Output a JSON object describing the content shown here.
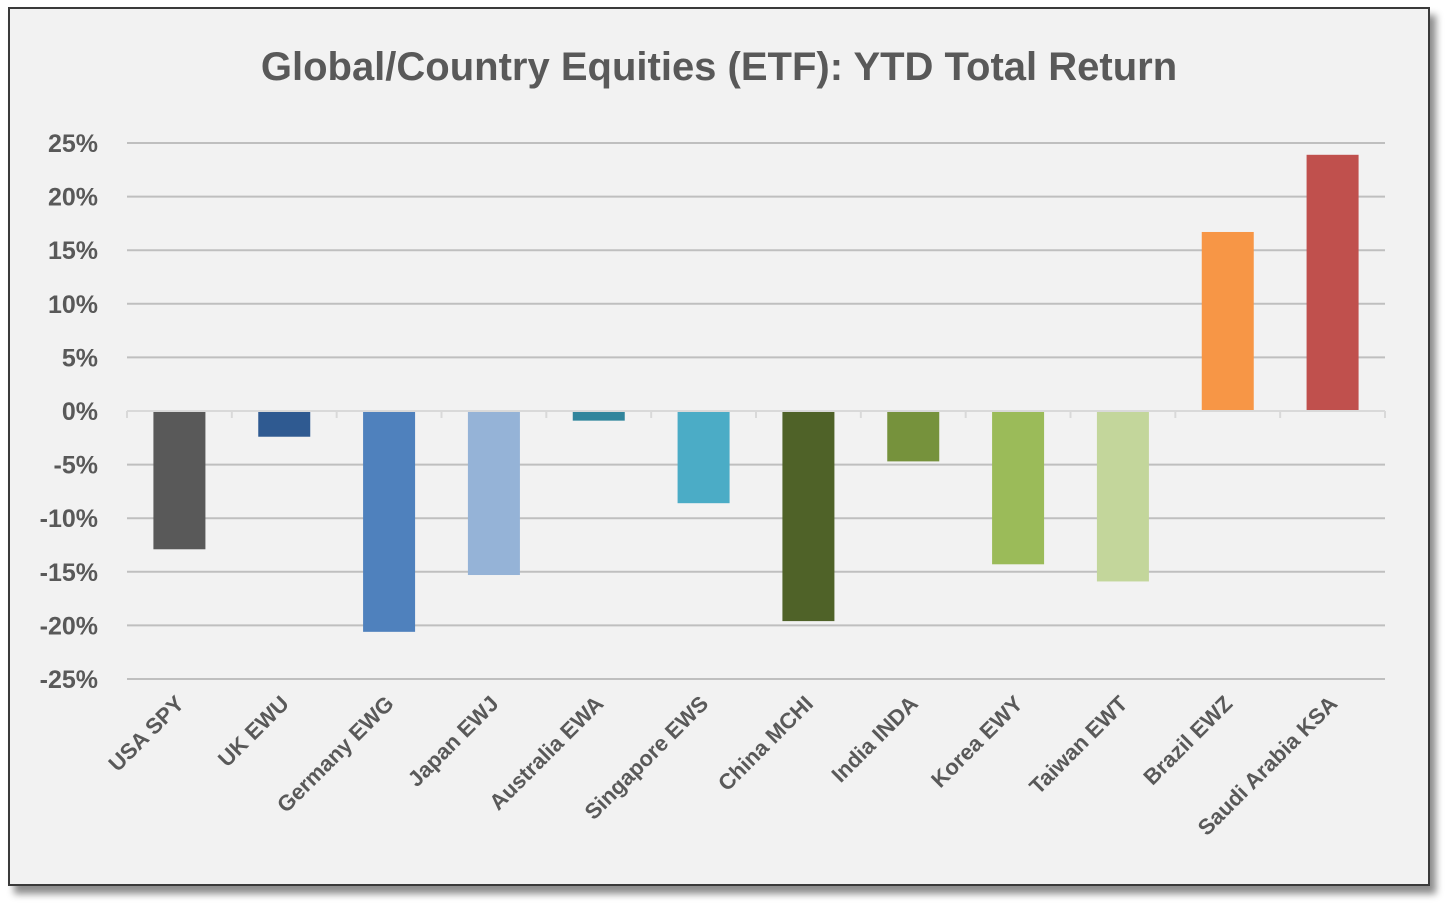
{
  "chart_data": {
    "type": "bar",
    "title": "Global/Country Equities (ETF): YTD Total Return",
    "xlabel": "",
    "ylabel": "",
    "ylim": [
      -25,
      25
    ],
    "yticks": [
      25,
      20,
      15,
      10,
      5,
      0,
      -5,
      -10,
      -15,
      -20,
      -25
    ],
    "ytick_labels": [
      "25%",
      "20%",
      "15%",
      "10%",
      "5%",
      "0%",
      "-5%",
      "-10%",
      "-15%",
      "-20%",
      "-25%"
    ],
    "grid": true,
    "legend": "none",
    "categories": [
      "USA SPY",
      "UK EWU",
      "Germany EWG",
      "Japan EWJ",
      "Australia EWA",
      "Singapore EWS",
      "China MCHI",
      "India INDA",
      "Korea EWY",
      "Taiwan EWT",
      "Brazil EWZ",
      "Saudi Arabia KSA"
    ],
    "values": [
      -12.9,
      -2.4,
      -20.6,
      -15.3,
      -0.9,
      -8.6,
      -19.6,
      -4.7,
      -14.3,
      -15.9,
      16.7,
      23.9
    ],
    "colors": [
      "#595959",
      "#2f5a91",
      "#4f81bd",
      "#95b3d7",
      "#31859c",
      "#4bacc6",
      "#4f6228",
      "#76923c",
      "#9bbb59",
      "#c3d69b",
      "#f79646",
      "#c0504d"
    ]
  }
}
